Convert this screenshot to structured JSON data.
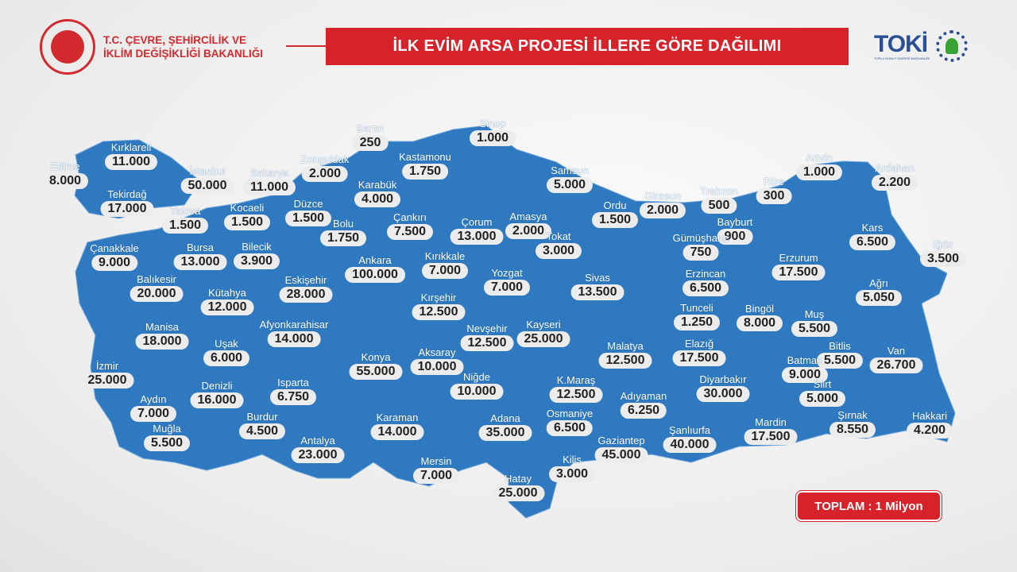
{
  "header": {
    "ministry_line1": "T.C. ÇEVRE, ŞEHİRCİLİK VE",
    "ministry_line2": "İKLİM DEĞİŞİKLİĞİ BAKANLIĞI",
    "title": "İLK EVİM ARSA PROJESİ İLLERE GÖRE DAĞILIMI",
    "toki_logo": "TOKİ",
    "toki_subtitle": "TOPLU KONUT İDARESİ BAŞKANLIĞI"
  },
  "colors": {
    "map": "#2e79c0",
    "accent": "#d8222a",
    "pill": "#ececec"
  },
  "total": "TOPLAM : 1 Milyon",
  "provinces": [
    {
      "name": "Edirne",
      "value": "8.000"
    },
    {
      "name": "Kırklareli",
      "value": "11.000"
    },
    {
      "name": "Tekirdağ",
      "value": "17.000"
    },
    {
      "name": "İstanbul",
      "value": "50.000"
    },
    {
      "name": "Sakarya",
      "value": "11.000"
    },
    {
      "name": "Zonguldak",
      "value": "2.000"
    },
    {
      "name": "Bartın",
      "value": "250"
    },
    {
      "name": "Sinop",
      "value": "1.000"
    },
    {
      "name": "Kastamonu",
      "value": "1.750"
    },
    {
      "name": "Samsun",
      "value": "5.000"
    },
    {
      "name": "Artvin",
      "value": "1.000"
    },
    {
      "name": "Ardahan",
      "value": "2.200"
    },
    {
      "name": "Yalova",
      "value": "1.500"
    },
    {
      "name": "Kocaeli",
      "value": "1.500"
    },
    {
      "name": "Düzce",
      "value": "1.500"
    },
    {
      "name": "Karabük",
      "value": "4.000"
    },
    {
      "name": "Bolu",
      "value": "1.750"
    },
    {
      "name": "Çankırı",
      "value": "7.500"
    },
    {
      "name": "Çorum",
      "value": "13.000"
    },
    {
      "name": "Amasya",
      "value": "2.000"
    },
    {
      "name": "Ordu",
      "value": "1.500"
    },
    {
      "name": "Giresun",
      "value": "2.000"
    },
    {
      "name": "Trabzon",
      "value": "500"
    },
    {
      "name": "Rize",
      "value": "300"
    },
    {
      "name": "Bayburt",
      "value": "900"
    },
    {
      "name": "Gümüşhane",
      "value": "750"
    },
    {
      "name": "Kars",
      "value": "6.500"
    },
    {
      "name": "Iğdır",
      "value": "3.500"
    },
    {
      "name": "Çanakkale",
      "value": "9.000"
    },
    {
      "name": "Bursa",
      "value": "13.000"
    },
    {
      "name": "Bilecik",
      "value": "3.900"
    },
    {
      "name": "Ankara",
      "value": "100.000"
    },
    {
      "name": "Kırıkkale",
      "value": "7.000"
    },
    {
      "name": "Tokat",
      "value": "3.000"
    },
    {
      "name": "Yozgat",
      "value": "7.000"
    },
    {
      "name": "Sivas",
      "value": "13.500"
    },
    {
      "name": "Erzurum",
      "value": "17.500"
    },
    {
      "name": "Erzincan",
      "value": "6.500"
    },
    {
      "name": "Ağrı",
      "value": "5.050"
    },
    {
      "name": "Balıkesir",
      "value": "20.000"
    },
    {
      "name": "Kütahya",
      "value": "12.000"
    },
    {
      "name": "Eskişehir",
      "value": "28.000"
    },
    {
      "name": "Kırşehir",
      "value": "12.500"
    },
    {
      "name": "Tunceli",
      "value": "1.250"
    },
    {
      "name": "Bingöl",
      "value": "8.000"
    },
    {
      "name": "Muş",
      "value": "5.500"
    },
    {
      "name": "Manisa",
      "value": "18.000"
    },
    {
      "name": "Afyonkarahisar",
      "value": "14.000"
    },
    {
      "name": "Uşak",
      "value": "6.000"
    },
    {
      "name": "Nevşehir",
      "value": "12.500"
    },
    {
      "name": "Kayseri",
      "value": "25.000"
    },
    {
      "name": "Aksaray",
      "value": "10.000"
    },
    {
      "name": "Malatya",
      "value": "12.500"
    },
    {
      "name": "Elazığ",
      "value": "17.500"
    },
    {
      "name": "Bitlis",
      "value": "5.500"
    },
    {
      "name": "Van",
      "value": "26.700"
    },
    {
      "name": "Batman",
      "value": "9.000"
    },
    {
      "name": "İzmir",
      "value": "25.000"
    },
    {
      "name": "Konya",
      "value": "55.000"
    },
    {
      "name": "Niğde",
      "value": "10.000"
    },
    {
      "name": "Isparta",
      "value": "6.750"
    },
    {
      "name": "Denizli",
      "value": "16.000"
    },
    {
      "name": "Aydın",
      "value": "7.000"
    },
    {
      "name": "K.Maraş",
      "value": "12.500"
    },
    {
      "name": "Adıyaman",
      "value": "6.250"
    },
    {
      "name": "Diyarbakır",
      "value": "30.000"
    },
    {
      "name": "Siirt",
      "value": "5.000"
    },
    {
      "name": "Muğla",
      "value": "5.500"
    },
    {
      "name": "Burdur",
      "value": "4.500"
    },
    {
      "name": "Karaman",
      "value": "14.000"
    },
    {
      "name": "Adana",
      "value": "35.000"
    },
    {
      "name": "Osmaniye",
      "value": "6.500"
    },
    {
      "name": "Şırnak",
      "value": "8.550"
    },
    {
      "name": "Hakkari",
      "value": "4.200"
    },
    {
      "name": "Mardin",
      "value": "17.500"
    },
    {
      "name": "Şanlıurfa",
      "value": "40.000"
    },
    {
      "name": "Gaziantep",
      "value": "45.000"
    },
    {
      "name": "Antalya",
      "value": "23.000"
    },
    {
      "name": "Mersin",
      "value": "7.000"
    },
    {
      "name": "Kilis",
      "value": "3.000"
    },
    {
      "name": "Hatay",
      "value": "25.000"
    }
  ]
}
